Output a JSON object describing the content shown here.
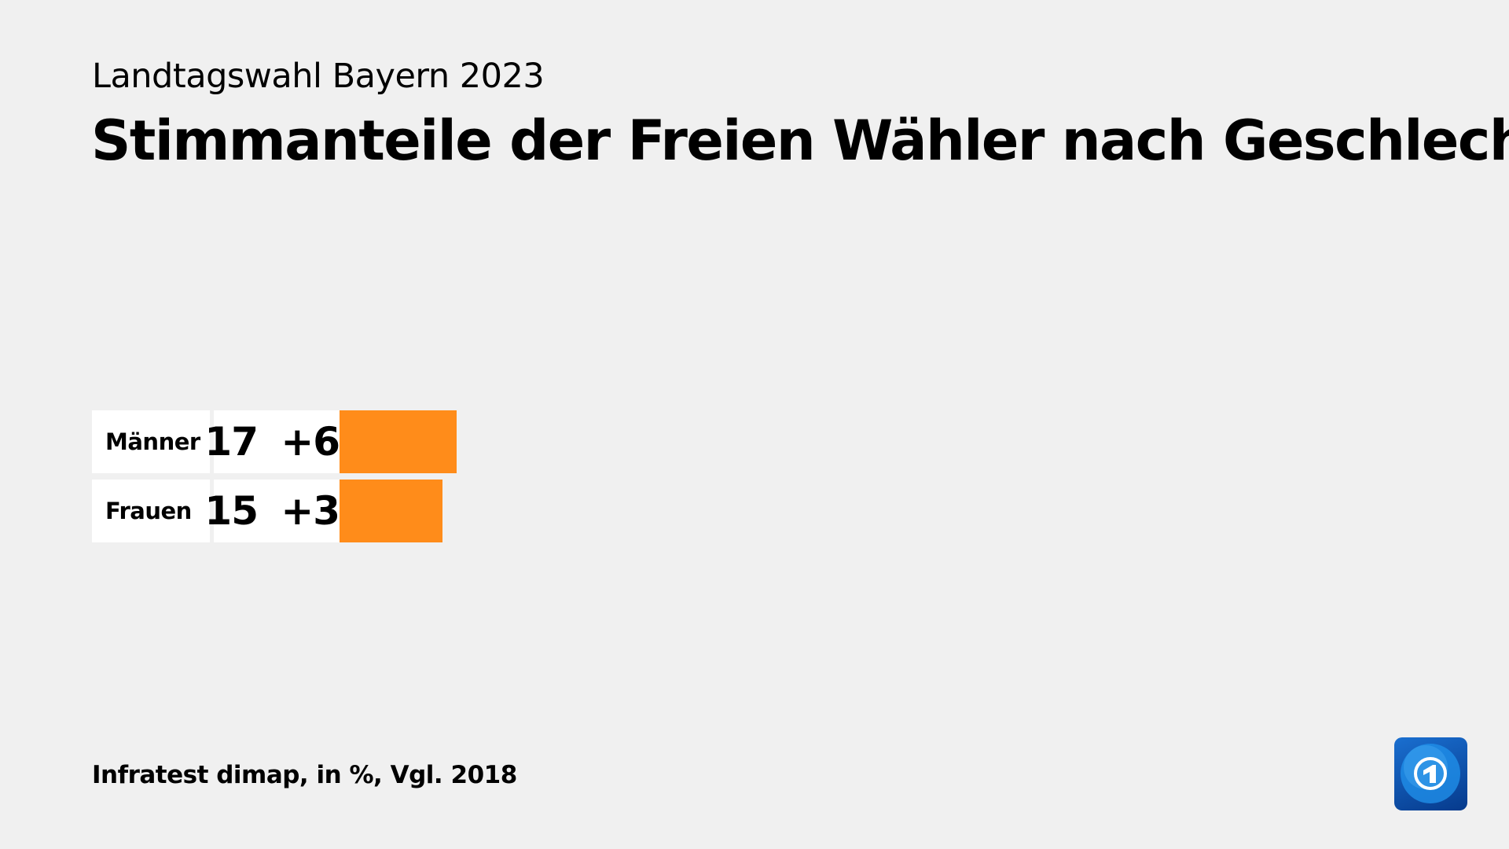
{
  "header": {
    "subtitle": "Landtagswahl Bayern 2023",
    "title": "Stimmanteile der Freien Wähler nach Geschlecht"
  },
  "chart_data": {
    "type": "bar",
    "orientation": "horizontal",
    "categories": [
      "Männer",
      "Frauen"
    ],
    "values": [
      17,
      15
    ],
    "changes": [
      "+6",
      "+3"
    ],
    "unit": "%",
    "bar_color": "#ff8c1a",
    "xlim": [
      0,
      100
    ]
  },
  "footer": {
    "source": "Infratest dimap, in %, Vgl. 2018"
  },
  "logo": {
    "name": "tagesschau-logo",
    "text": "1"
  }
}
